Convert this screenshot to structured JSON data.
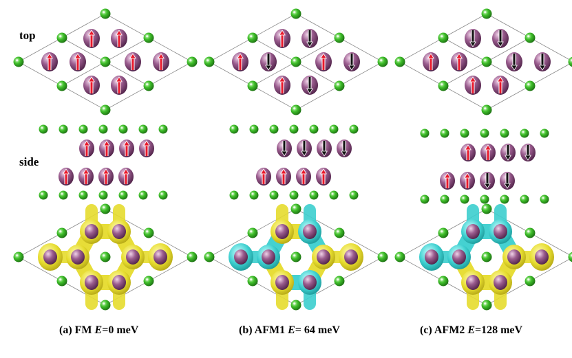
{
  "row_labels": {
    "top": "top",
    "side": "side"
  },
  "panels": [
    {
      "id": "a",
      "caption_prefix": "(a) FM",
      "energy_symbol": "E",
      "energy_value": "=0 meV",
      "top_spins": [
        "up",
        "up",
        "up",
        "up",
        "up",
        "up",
        "up",
        "up"
      ],
      "side_upper_spins": [
        "up",
        "up",
        "up",
        "up"
      ],
      "side_lower_spins": [
        "up",
        "up",
        "up",
        "up"
      ],
      "density": "yellow"
    },
    {
      "id": "b",
      "caption_prefix": "(b) AFM1",
      "energy_symbol": "E",
      "energy_value": "= 64 meV",
      "top_spins": [
        "up",
        "down",
        "up",
        "down",
        "up",
        "down",
        "up",
        "down"
      ],
      "side_upper_spins": [
        "down",
        "down",
        "down",
        "down"
      ],
      "side_lower_spins": [
        "up",
        "up",
        "up",
        "up"
      ],
      "density": "yellow-cyan"
    },
    {
      "id": "c",
      "caption_prefix": "(c) AFM2",
      "energy_symbol": "E",
      "energy_value": "=128 meV",
      "top_spins": [
        "down",
        "down",
        "up",
        "up",
        "down",
        "down",
        "up",
        "up"
      ],
      "side_upper_spins": [
        "up",
        "up",
        "down",
        "down"
      ],
      "side_lower_spins": [
        "up",
        "up",
        "down",
        "down"
      ],
      "density": "mixed"
    }
  ],
  "colors": {
    "green_atom": "#3fbf2a",
    "purple_atom": "#9a5c8e",
    "spin_up": "#e8192c",
    "spin_down": "#111111",
    "density_yellow": "#e6dc2e",
    "density_cyan": "#3ccfcf",
    "cell_line": "#8a8a8a"
  }
}
